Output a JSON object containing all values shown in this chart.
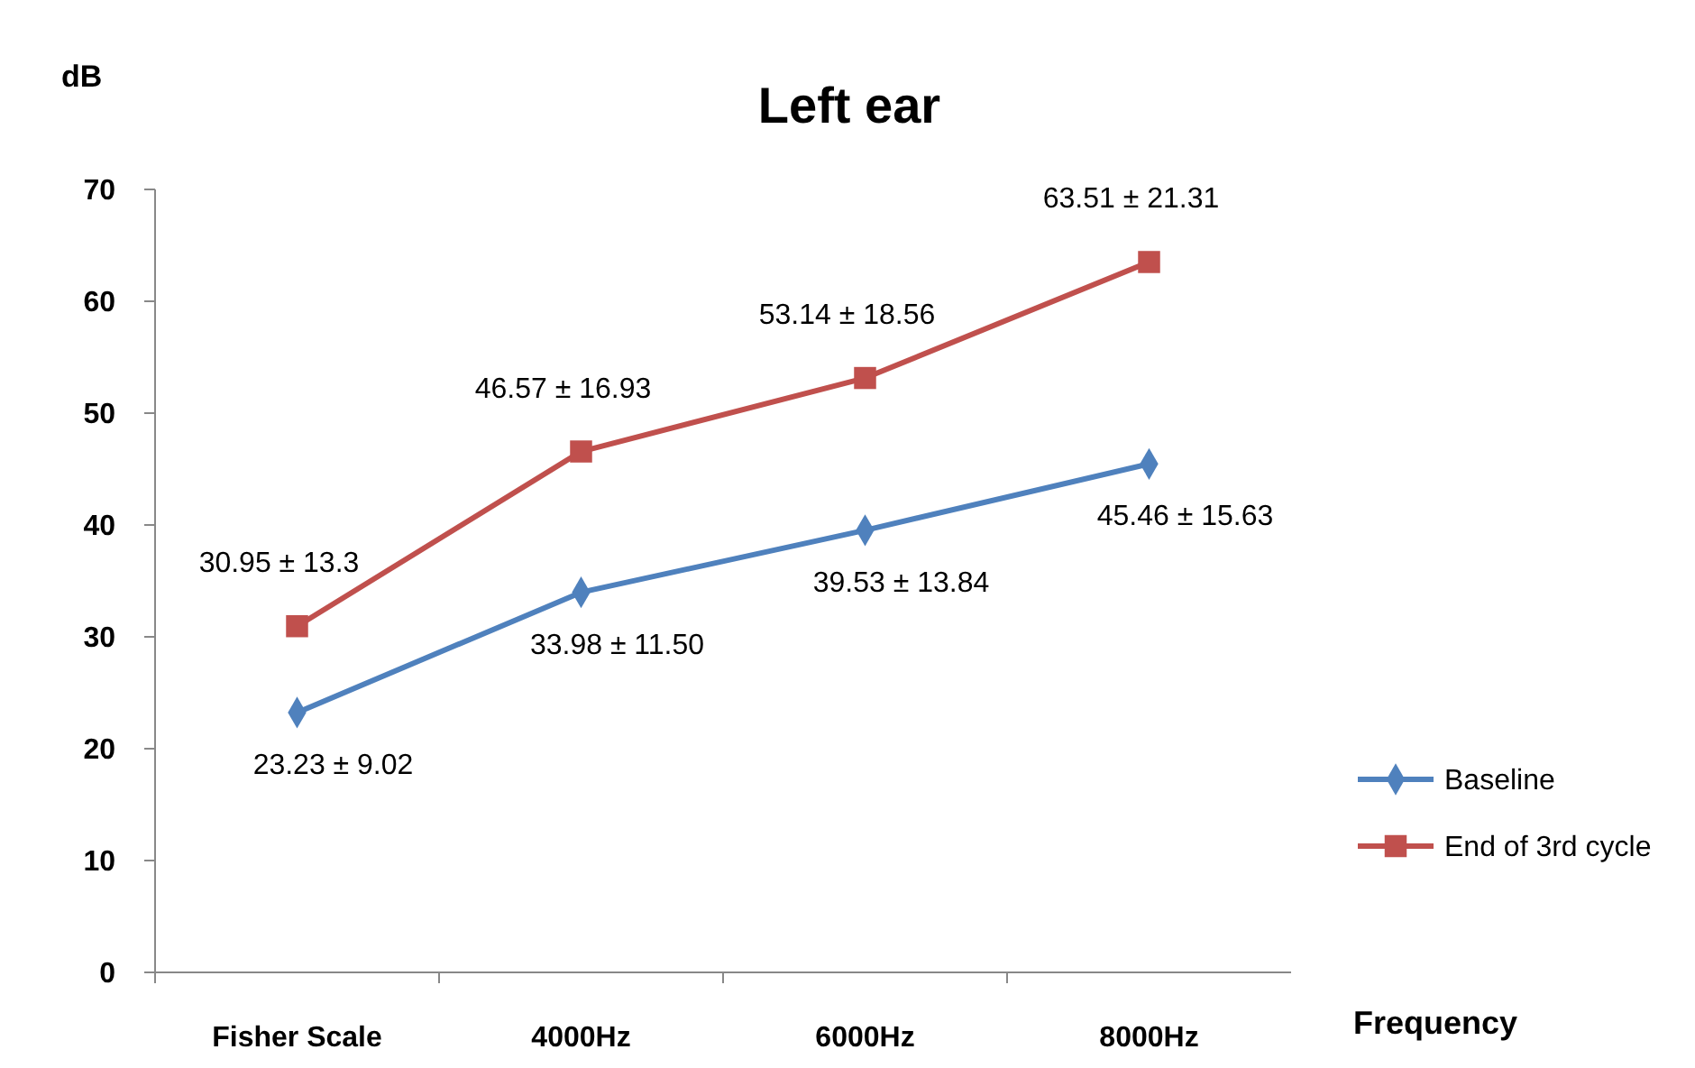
{
  "chart_data": {
    "type": "line",
    "title": "Left ear",
    "ylabel": "dB",
    "xlabel": "Frequency",
    "categories": [
      "Fisher Scale",
      "4000Hz",
      "6000Hz",
      "8000Hz"
    ],
    "ylim": [
      0,
      70
    ],
    "yticks": [
      0,
      10,
      20,
      30,
      40,
      50,
      60,
      70
    ],
    "grid": false,
    "legend": "right",
    "series": [
      {
        "name": "Baseline",
        "color": "#4f81bd",
        "marker": "diamond",
        "values": [
          23.23,
          33.98,
          39.53,
          45.46
        ],
        "value_labels": [
          "23.23 ± 9.02",
          "33.98 ± 11.50",
          "39.53 ± 13.84",
          "45.46 ± 15.63"
        ]
      },
      {
        "name": "End of 3rd cycle",
        "color": "#c0504d",
        "marker": "square",
        "values": [
          30.95,
          46.57,
          53.14,
          63.51
        ],
        "value_labels": [
          "30.95 ± 13.3",
          "46.57 ± 16.93",
          "53.14 ± 18.56",
          "63.51 ± 21.31"
        ]
      }
    ]
  }
}
